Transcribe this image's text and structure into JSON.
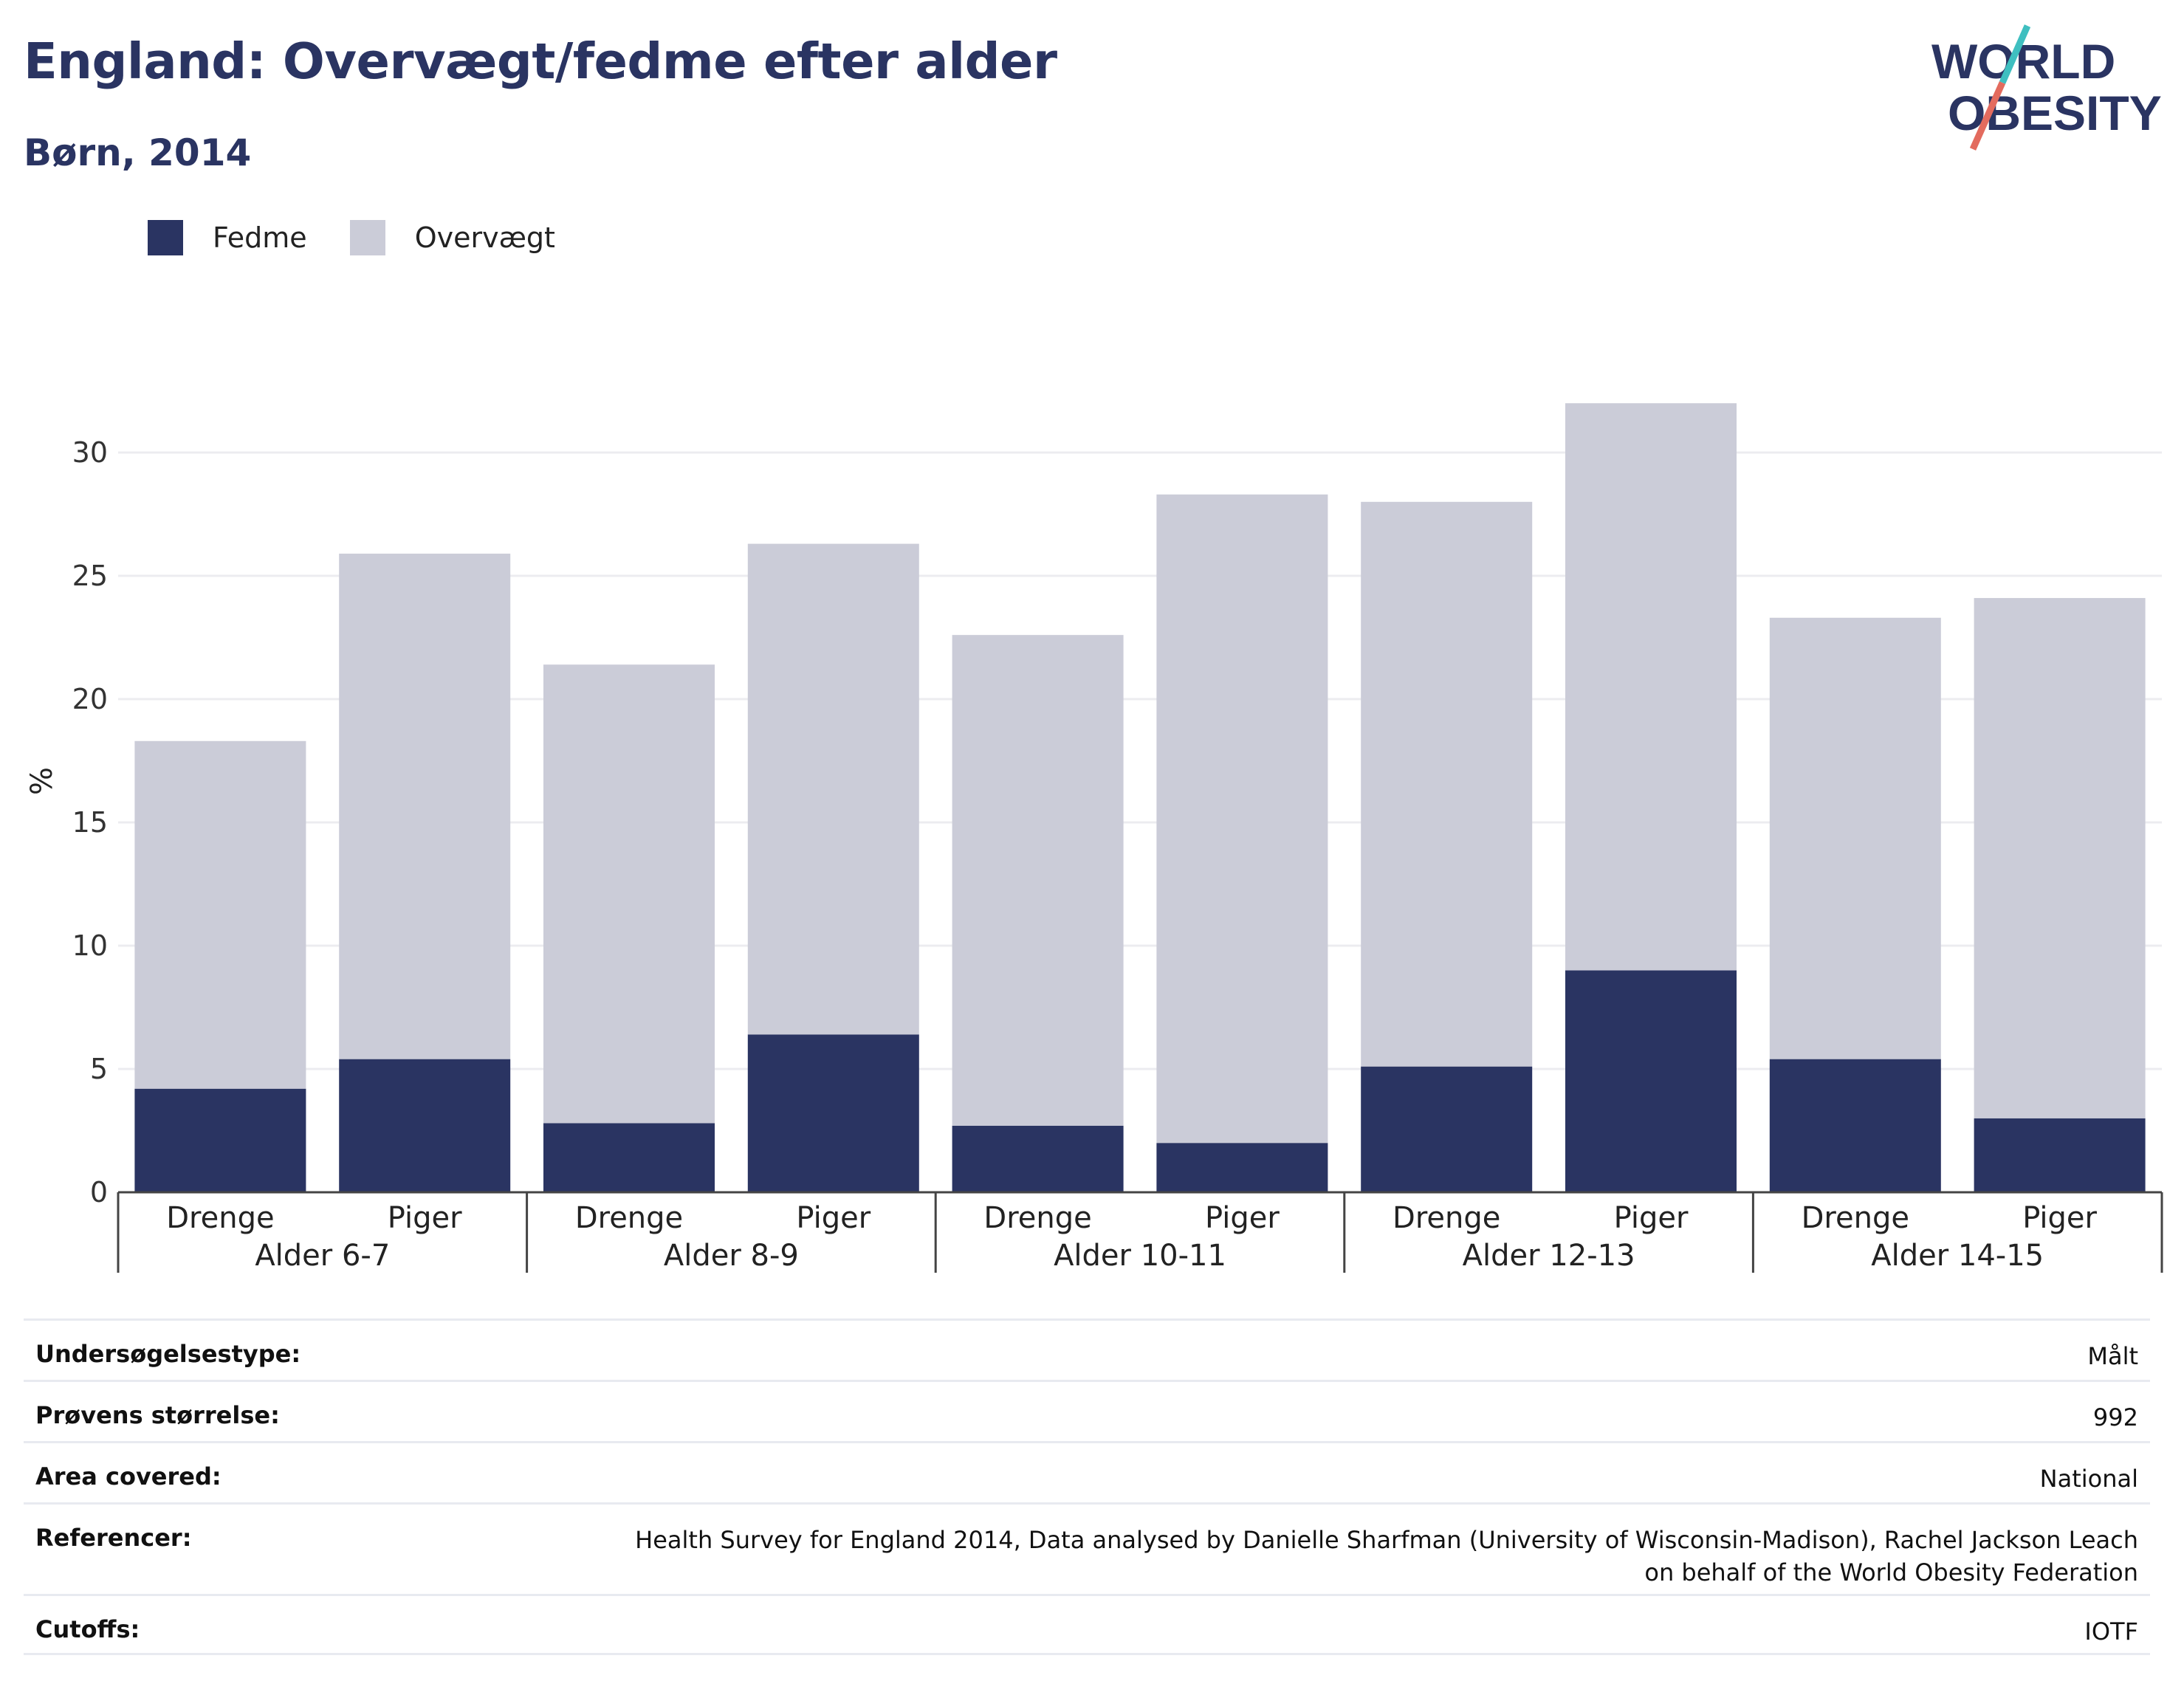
{
  "header": {
    "title": "England: Overvægt/fedme efter alder",
    "subtitle": "Børn, 2014"
  },
  "logo": {
    "line1": "WORLD",
    "line2": "OBESITY",
    "colors": {
      "text": "#2a3462",
      "slash_top": "#3fbfc0",
      "slash_bottom": "#e36b5e"
    }
  },
  "legend": [
    {
      "label": "Fedme",
      "color": "#2a3462"
    },
    {
      "label": "Overvægt",
      "color": "#cbccd8"
    }
  ],
  "chart_data": {
    "type": "bar",
    "stacked": true,
    "ylabel": "%",
    "ylim": [
      0,
      33
    ],
    "yticks": [
      0,
      5,
      10,
      15,
      20,
      25,
      30
    ],
    "grid": true,
    "legend_position": "top-left",
    "groups": [
      {
        "label": "Alder 6-7",
        "categories": [
          "Drenge",
          "Piger"
        ]
      },
      {
        "label": "Alder 8-9",
        "categories": [
          "Drenge",
          "Piger"
        ]
      },
      {
        "label": "Alder 10-11",
        "categories": [
          "Drenge",
          "Piger"
        ]
      },
      {
        "label": "Alder 12-13",
        "categories": [
          "Drenge",
          "Piger"
        ]
      },
      {
        "label": "Alder 14-15",
        "categories": [
          "Drenge",
          "Piger"
        ]
      }
    ],
    "series": [
      {
        "name": "Fedme",
        "color": "#2a3462",
        "values": [
          4.2,
          5.4,
          2.8,
          6.4,
          2.7,
          2.0,
          5.1,
          9.0,
          5.4,
          3.0
        ]
      },
      {
        "name": "Overvægt",
        "color": "#cbccd8",
        "values": [
          14.1,
          20.5,
          18.6,
          19.9,
          19.9,
          26.3,
          22.9,
          23.0,
          17.9,
          21.1
        ]
      }
    ]
  },
  "details": [
    {
      "label": "Undersøgelsestype:",
      "value": "Målt"
    },
    {
      "label": "Prøvens størrelse:",
      "value": "992"
    },
    {
      "label": "Area covered:",
      "value": "National"
    },
    {
      "label": "Referencer:",
      "value": "Health Survey for England 2014, Data analysed by Danielle Sharfman (University of Wisconsin-Madison), Rachel Jackson Leach on behalf of the World Obesity Federation"
    },
    {
      "label": "Cutoffs:",
      "value": "IOTF"
    }
  ]
}
